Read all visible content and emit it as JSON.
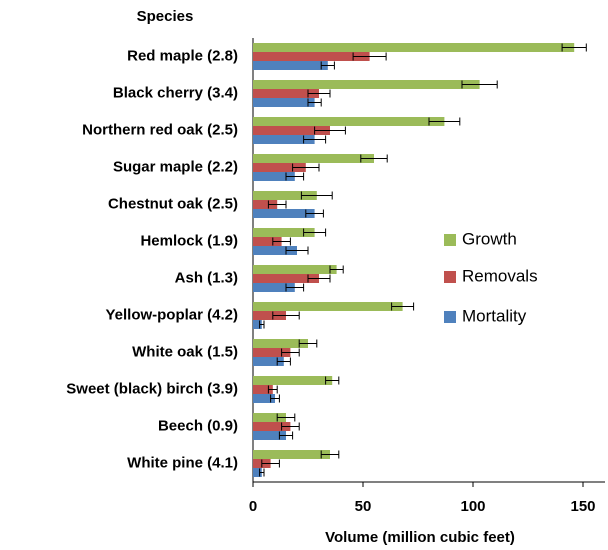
{
  "chart_data": {
    "type": "bar",
    "orientation": "horizontal",
    "y_title": "Species",
    "x_title": "Volume (million cubic feet)",
    "categories": [
      "Red maple (2.8)",
      "Black cherry (3.4)",
      "Northern red oak (2.5)",
      "Sugar maple (2.2)",
      "Chestnut oak (2.5)",
      "Hemlock (1.9)",
      "Ash (1.3)",
      "Yellow-poplar (4.2)",
      "White oak (1.5)",
      "Sweet (black) birch (3.9)",
      "Beech (0.9)",
      "White pine (4.1)"
    ],
    "series": [
      {
        "name": "Growth",
        "color": "#9bbb59",
        "values": [
          146,
          103,
          87,
          55,
          29,
          28,
          38,
          68,
          25,
          36,
          15,
          35
        ],
        "errors": [
          5.5,
          8,
          7,
          6,
          7,
          5,
          3,
          5,
          4,
          3,
          4,
          4
        ]
      },
      {
        "name": "Removals",
        "color": "#c0504d",
        "values": [
          53,
          30,
          35,
          24,
          11,
          13,
          30,
          15,
          17,
          9,
          17,
          8
        ],
        "errors": [
          7.5,
          5,
          7,
          6,
          4,
          4,
          5,
          6,
          4,
          2,
          4,
          4
        ]
      },
      {
        "name": "Mortality",
        "color": "#4f81bd",
        "values": [
          34,
          28,
          28,
          19,
          28,
          20,
          19,
          4,
          14,
          10,
          15,
          4
        ],
        "errors": [
          3,
          3,
          5,
          4,
          4,
          5,
          4,
          1,
          3,
          2,
          3,
          1
        ]
      }
    ],
    "xlim": [
      0,
      160
    ],
    "xticks": [
      0,
      50,
      100,
      150
    ],
    "grid": false,
    "legend": "right"
  }
}
